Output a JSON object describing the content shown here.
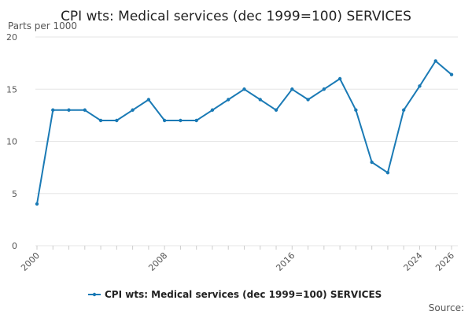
{
  "chart_data": {
    "type": "line",
    "title": "CPI wts: Medical services (dec 1999=100) SERVICES",
    "ylabel": "Parts per 1000",
    "xlabel": "",
    "ylim": [
      0,
      20
    ],
    "yticks": [
      "0",
      "5",
      "10",
      "15",
      "20"
    ],
    "xlim": [
      2000,
      2026
    ],
    "xticks": [
      "2000",
      "2008",
      "2016",
      "2024",
      "2026"
    ],
    "grid": true,
    "legend_position": "bottom",
    "series": [
      {
        "name": "CPI wts: Medical services (dec 1999=100) SERVICES",
        "color": "#1a7ab5",
        "x": [
          2000,
          2001,
          2002,
          2003,
          2004,
          2005,
          2006,
          2007,
          2008,
          2009,
          2010,
          2011,
          2012,
          2013,
          2014,
          2015,
          2016,
          2017,
          2018,
          2019,
          2020,
          2021,
          2022,
          2023,
          2024,
          2025,
          2026
        ],
        "values": [
          4,
          13,
          13,
          13,
          12,
          12,
          13,
          14,
          12,
          12,
          12,
          13,
          14,
          15,
          14,
          13,
          15,
          14,
          15,
          16,
          13,
          8,
          7,
          13,
          15.3,
          17.7,
          16.4
        ]
      }
    ]
  },
  "footer": {
    "source_label": "Source:"
  }
}
